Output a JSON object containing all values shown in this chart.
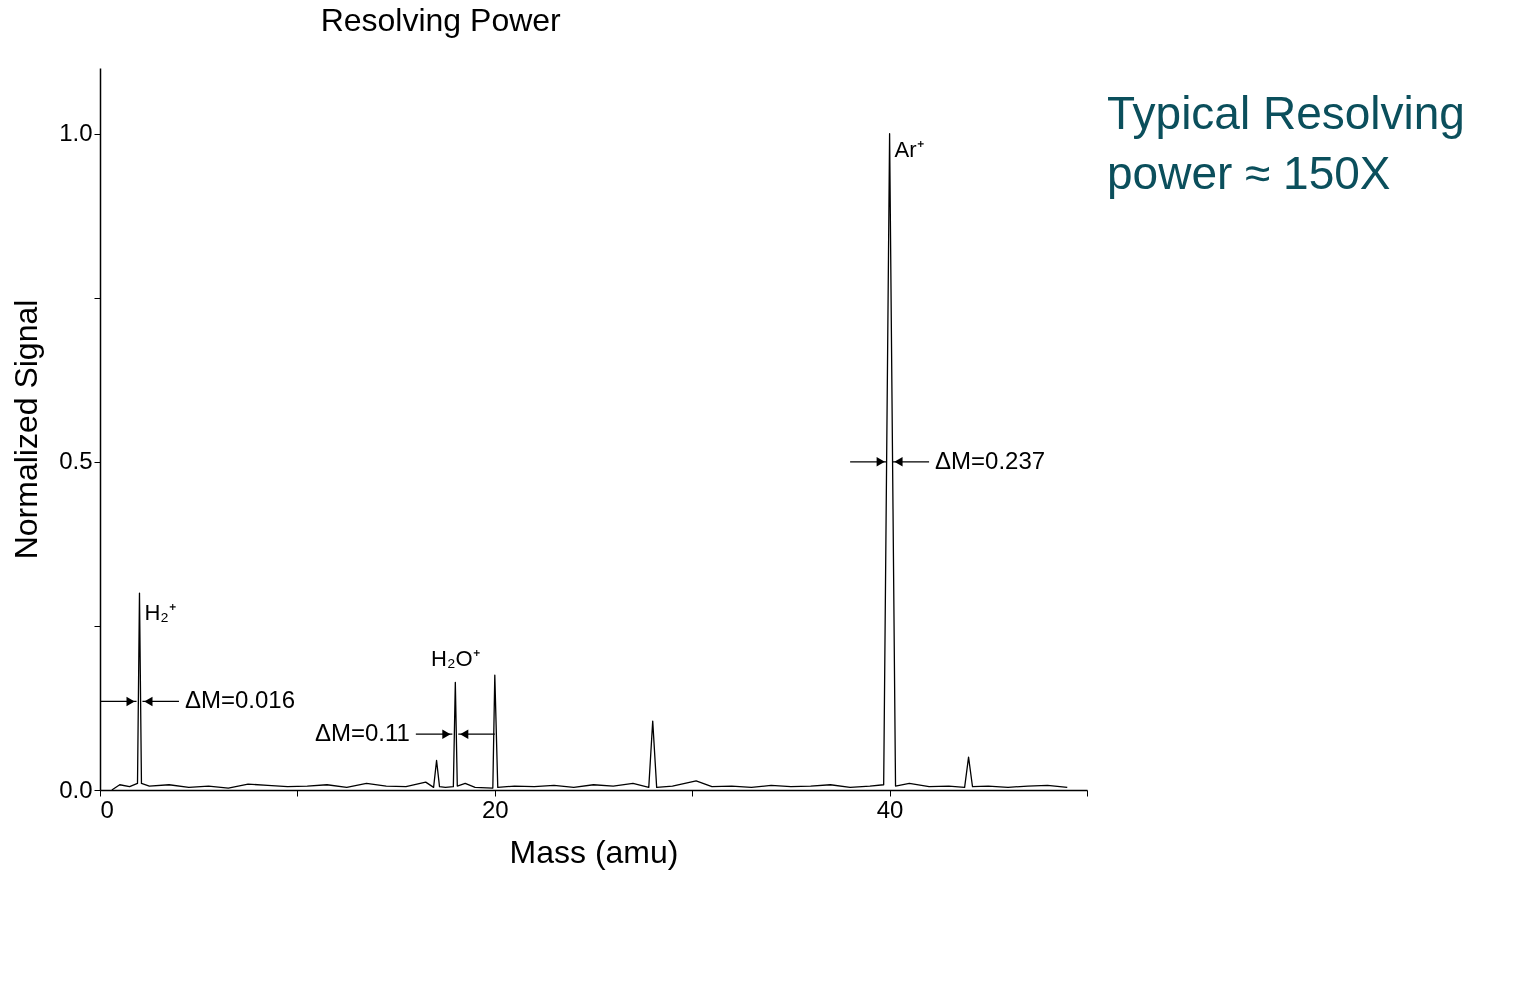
{
  "chart_data": {
    "type": "line",
    "title": "Resolving Power",
    "xlabel": "Mass (amu)",
    "ylabel": "Normalized Signal",
    "x": [
      0.6,
      1.0,
      1.5,
      1.9,
      2.0,
      2.1,
      2.5,
      3.5,
      4.5,
      5.5,
      6.5,
      7.5,
      8.5,
      9.5,
      10.5,
      11.5,
      12.5,
      13.5,
      14.5,
      15.5,
      16.5,
      16.9,
      17.05,
      17.2,
      17.5,
      17.9,
      18.0,
      18.1,
      18.5,
      19.0,
      19.9,
      20.0,
      20.15,
      21,
      22,
      23,
      24,
      25,
      26,
      27,
      27.8,
      28.0,
      28.2,
      29,
      30.2,
      31,
      32,
      33,
      34,
      35,
      36,
      37,
      38,
      39,
      39.7,
      40.0,
      40.3,
      41,
      42,
      43,
      43.8,
      44.0,
      44.2,
      45,
      46,
      47,
      48,
      49
    ],
    "series": [
      {
        "color": "#000000",
        "values": [
          0.0,
          0.008,
          0.005,
          0.01,
          0.3,
          0.01,
          0.006,
          0.008,
          0.004,
          0.006,
          0.003,
          0.009,
          0.007,
          0.005,
          0.006,
          0.008,
          0.004,
          0.01,
          0.006,
          0.005,
          0.012,
          0.004,
          0.045,
          0.005,
          0.004,
          0.005,
          0.164,
          0.006,
          0.01,
          0.004,
          0.003,
          0.175,
          0.004,
          0.006,
          0.005,
          0.007,
          0.004,
          0.008,
          0.006,
          0.01,
          0.004,
          0.105,
          0.004,
          0.006,
          0.014,
          0.005,
          0.006,
          0.004,
          0.007,
          0.005,
          0.006,
          0.008,
          0.004,
          0.006,
          0.008,
          1.0,
          0.006,
          0.01,
          0.005,
          0.006,
          0.004,
          0.05,
          0.005,
          0.006,
          0.004,
          0.006,
          0.007,
          0.004
        ]
      }
    ],
    "xlim": [
      0,
      50
    ],
    "xticks": [
      0,
      {
        "value": 10,
        "label": null
      },
      20,
      {
        "value": 30,
        "label": null
      },
      40,
      {
        "value": 50,
        "label": null
      }
    ],
    "ylim": [
      0,
      1.1
    ],
    "yticks": [
      {
        "value": 0,
        "label": "0.0"
      },
      {
        "value": 0.25,
        "label": null
      },
      {
        "value": 0.5,
        "label": "0.5"
      },
      {
        "value": 0.75,
        "label": null
      },
      {
        "value": 1.0,
        "label": "1.0"
      }
    ],
    "grid": false,
    "legend": false,
    "line_style": "solid",
    "marker": "none",
    "annotations": [
      {
        "text": "H₂⁺",
        "x": 2,
        "y": 0.3
      },
      {
        "text": "H₂O⁺",
        "x": 18,
        "y": 0.164
      },
      {
        "text": "Ar⁺",
        "x": 40,
        "y": 1.0
      },
      {
        "text": "ΔM=0.016",
        "x": 2,
        "y": 0.135
      },
      {
        "text": "ΔM=0.11",
        "x": 18,
        "y": 0.085
      },
      {
        "text": "ΔM=0.237",
        "x": 40,
        "y": 0.5
      },
      "Typical Resolving power ≈ 150X"
    ]
  }
}
